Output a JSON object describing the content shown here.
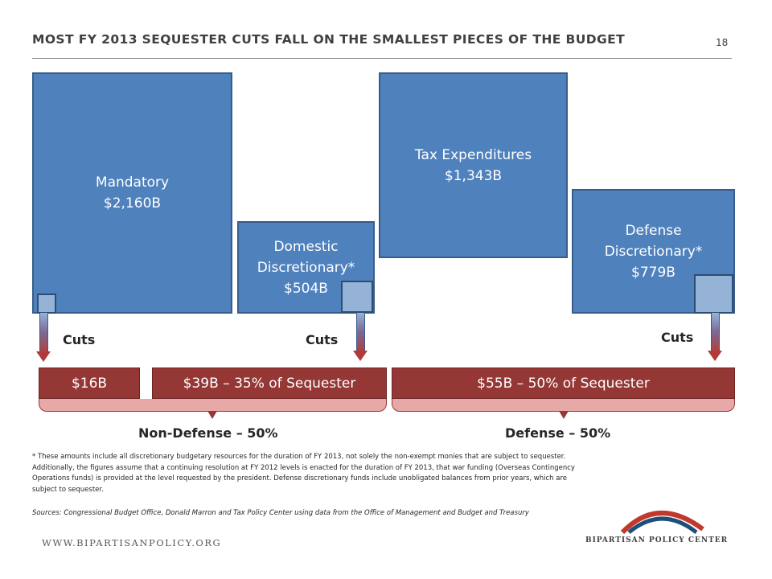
{
  "header": {
    "title": "MOST FY 2013 SEQUESTER CUTS FALL ON THE SMALLEST PIECES OF THE BUDGET",
    "page_number": "18"
  },
  "blocks": {
    "mandatory": {
      "name": "Mandatory",
      "value": "$2,160B"
    },
    "domestic": {
      "name1": "Domestic",
      "name2": "Discretionary*",
      "value": "$504B"
    },
    "tax": {
      "name": "Tax Expenditures",
      "value": "$1,343B"
    },
    "defense": {
      "name1": "Defense",
      "name2": "Discretionary*",
      "value": "$779B"
    }
  },
  "cuts_label": "Cuts",
  "cut_amounts": {
    "mandatory": "$16B",
    "domestic": "$39B – 35% of Sequester",
    "defense": "$55B – 50% of Sequester"
  },
  "groups": {
    "non_defense": "Non-Defense – 50%",
    "defense": "Defense – 50%"
  },
  "footnote": "* These amounts include all discretionary budgetary resources for the duration of FY 2013, not solely the non-exempt monies that are subject to sequester. Additionally, the figures assume that a continuing resolution at FY 2012 levels is enacted for the duration of FY 2013, that war funding (Overseas Contingency Operations funds) is provided at the level requested by the president. Defense discretionary funds include unobligated balances from prior years, which are subject to sequester.",
  "sources": "Sources: Congressional Budget Office, Donald Marron and Tax Policy Center using data from the Office of Management and Budget and Treasury",
  "footer": {
    "website": "WWW.BIPARTISANPOLICY.ORG",
    "brand": "BIPARTISAN POLICY CENTER"
  },
  "colors": {
    "block_fill": "#4f81bd",
    "cut_fill": "#95b3d7",
    "amount_fill": "#953735",
    "bracket_fill": "#e6a9a8",
    "logo_red": "#c0392b",
    "logo_blue": "#1f4e79"
  }
}
